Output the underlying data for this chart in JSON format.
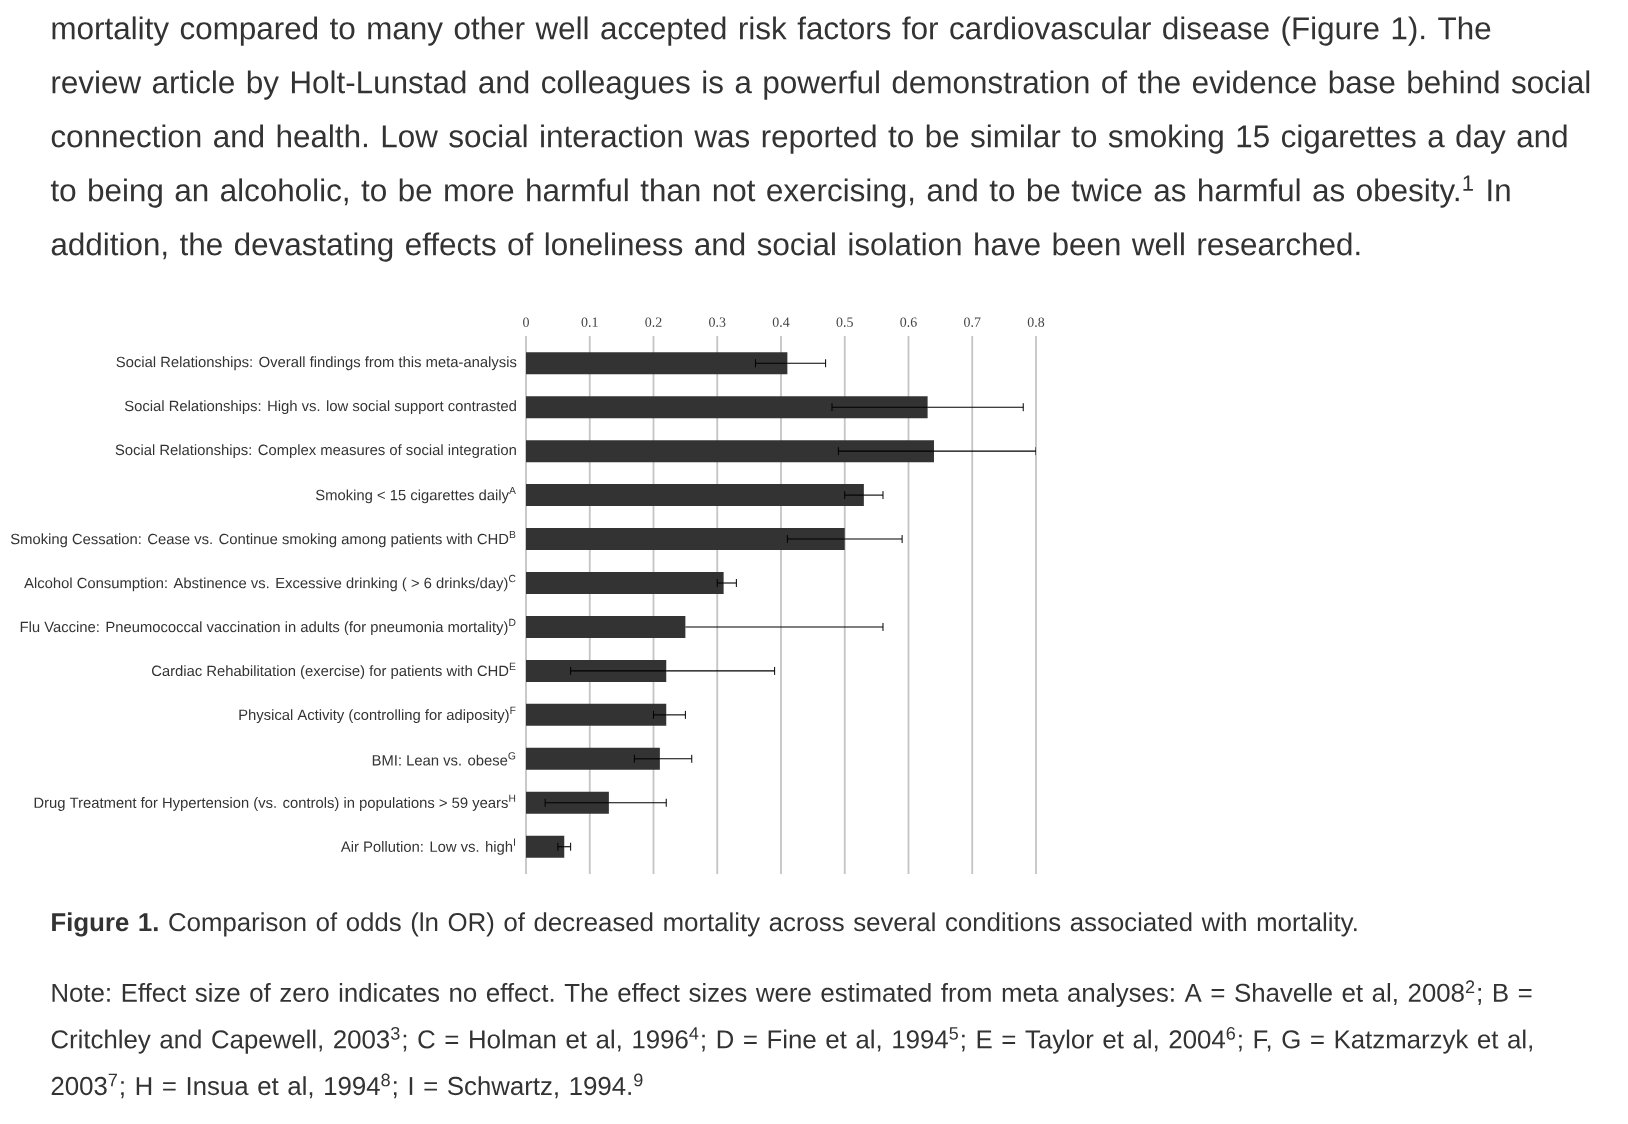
{
  "chart_data": {
    "type": "bar",
    "orientation": "horizontal",
    "categories": [
      "Social Relationships: Overall findings from this meta-analysis",
      "Social Relationships: High vs. low social support contrasted",
      "Social Relationships: Complex measures of social integration",
      "Smoking < 15 cigarettes daily$^{A}$",
      "Smoking Cessation: Cease vs. Continue smoking among patients with CHD$^{B}$",
      "Alcohol Consumption: Abstinence vs. Excessive drinking ( > 6 drinks/day)$^{C}$",
      "Flu Vaccine: Pneumococcal vaccination in adults (for pneumonia mortality)$^{D}$",
      "Cardiac Rehabilitation (exercise) for patients with CHD$^{E}$",
      "Physical Activity (controlling for adiposity)$^{F}$",
      "BMI: Lean vs. obese$^{G}$",
      "Drug Treatment for Hypertension (vs. controls) in populations > 59 years$^{H}$",
      "Air Pollution: Low vs. high$^{I}$"
    ],
    "values": [
      0.41,
      0.63,
      0.64,
      0.53,
      0.5,
      0.31,
      0.25,
      0.22,
      0.22,
      0.21,
      0.13,
      0.06
    ],
    "errors": [
      [
        0.36,
        0.47
      ],
      [
        0.48,
        0.78
      ],
      [
        0.49,
        0.8
      ],
      [
        0.5,
        0.56
      ],
      [
        0.41,
        0.59
      ],
      [
        0.3,
        0.33
      ],
      [
        0.25,
        0.56
      ],
      [
        0.07,
        0.39
      ],
      [
        0.2,
        0.25
      ],
      [
        0.17,
        0.26
      ],
      [
        0.03,
        0.22
      ],
      [
        0.05,
        0.07
      ]
    ],
    "color": "#333333",
    "xlim": [
      0,
      0.8
    ],
    "xticks": [
      0,
      0.1,
      0.2,
      0.3,
      0.4,
      0.5,
      0.6,
      0.7,
      0.8
    ],
    "grid": "x",
    "annotations": [
      "mortality compared to many other well accepted risk factors for cardiovascular disease (Figure 1). The review article by Holt-Lunstad and colleagues is a powerful demonstration of the evidence base behind social connection and health. Low social interaction was reported to be similar to smoking 15 cigarettes a day and to being an alcoholic, to be more harmful than not exercising, and to be twice as harmful as obesity.$^{1}$ In addition, the devastating effects of loneliness and social isolation have been well researched.",
      "**Figure 1.** Comparison of odds (ln OR) of decreased mortality across several conditions associated with mortality.",
      "Note: Effect size of zero indicates no effect. The effect sizes were estimated from meta analyses: A = Shavelle et al, 2008$^{2}$; B = Critchley and Capewell, 2003$^{3}$; C = Holman et al, 1996$^{4}$; D = Fine et al, 1994$^{5}$; E = Taylor et al, 2004$^{6}$; F, G = Katzmarzyk et al, 2003$^{7}$; H = Insua et al, 1994$^{8}$; I = Schwartz, 1994.$^{9}$"
    ]
  }
}
